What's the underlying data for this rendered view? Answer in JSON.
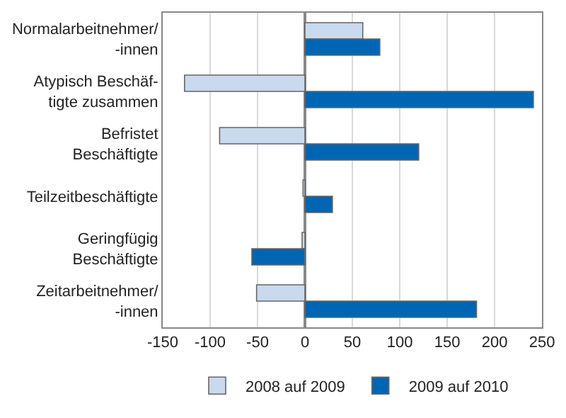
{
  "chart_data": {
    "type": "bar",
    "orientation": "horizontal",
    "categories": [
      "Normalarbeitnehmer/\n-innen",
      "Atypisch Beschäf-\ntigte zusammen",
      "Befristet\nBeschäftigte",
      "Teilzeitbeschäftigte",
      "Geringfügig\nBeschäftigte",
      "Zeitarbeitnehmer/\n-innen"
    ],
    "series": [
      {
        "name": "2008 auf 2009",
        "color": "#c9d9ee",
        "values": [
          61,
          -127,
          -90,
          -2,
          -3,
          -51
        ]
      },
      {
        "name": "2009 auf 2010",
        "color": "#0066b3",
        "values": [
          79,
          241,
          120,
          29,
          -56,
          181
        ]
      }
    ],
    "xlim": [
      -150,
      250
    ],
    "xticks": [
      -150,
      -100,
      -50,
      0,
      50,
      100,
      150,
      200,
      250
    ],
    "grid": "x",
    "legend": "bottom"
  }
}
